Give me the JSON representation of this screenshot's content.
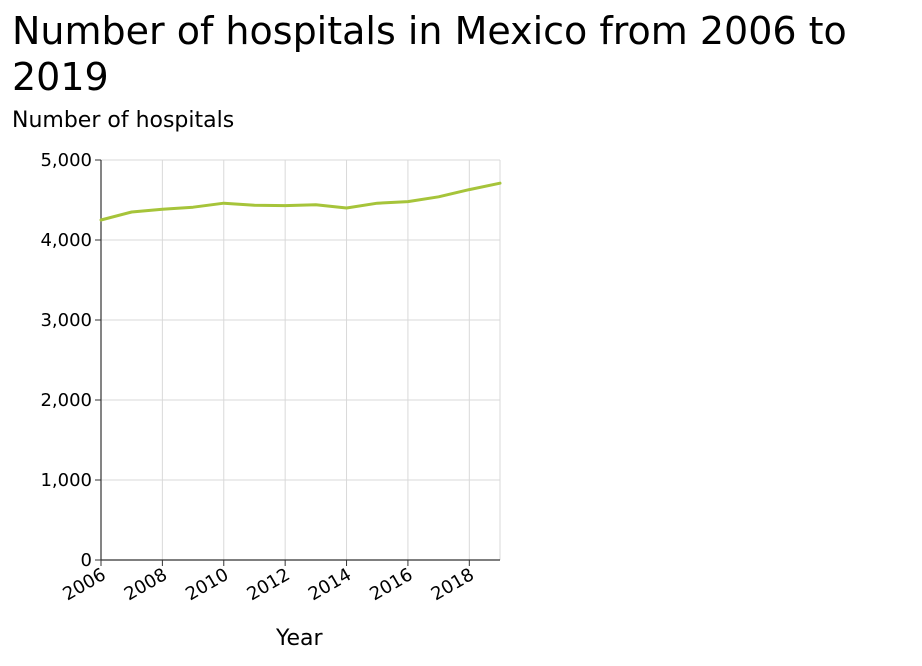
{
  "chart_data": {
    "type": "line",
    "title": "Number of hospitals in Mexico from 2006 to 2019",
    "xlabel": "Year",
    "ylabel": "Number of hospitals",
    "x": [
      2006,
      2007,
      2008,
      2009,
      2010,
      2011,
      2012,
      2013,
      2014,
      2015,
      2016,
      2017,
      2018,
      2019
    ],
    "series": [
      {
        "values": [
          4250,
          4350,
          4385,
          4410,
          4460,
          4435,
          4430,
          4440,
          4400,
          4460,
          4480,
          4540,
          4630,
          4710
        ]
      }
    ],
    "xlim": [
      2006,
      2019
    ],
    "ylim": [
      0,
      5000
    ],
    "xticks": [
      2006,
      2008,
      2010,
      2012,
      2014,
      2016,
      2018
    ],
    "xtick_labels": [
      "2006",
      "2008",
      "2010",
      "2012",
      "2014",
      "2016",
      "2018"
    ],
    "yticks": [
      0,
      1000,
      2000,
      3000,
      4000,
      5000
    ],
    "ytick_labels": [
      "0",
      "1,000",
      "2,000",
      "3,000",
      "4,000",
      "5,000"
    ],
    "grid": true,
    "line_color": "#a6c43a",
    "grid_color": "#d9d9d9"
  }
}
